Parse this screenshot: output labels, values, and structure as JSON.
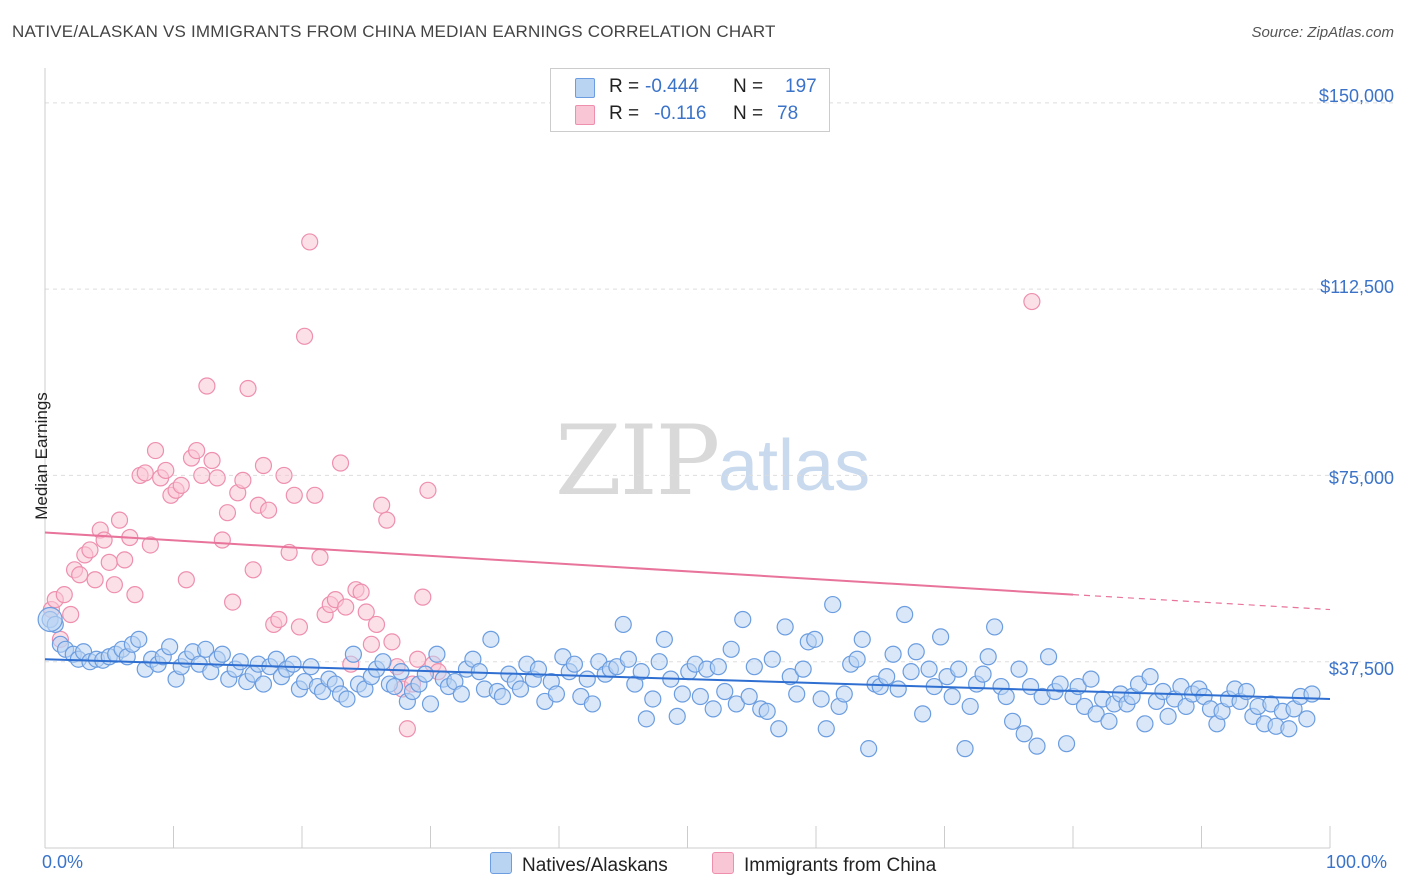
{
  "title": "NATIVE/ALASKAN VS IMMIGRANTS FROM CHINA MEDIAN EARNINGS CORRELATION CHART",
  "source": "Source: ZipAtlas.com",
  "watermark": {
    "zip": "ZIP",
    "atlas": "atlas"
  },
  "legend": {
    "r_label": "R =",
    "n_label": "N =",
    "rows": [
      {
        "r": "-0.444",
        "n": "197"
      },
      {
        "r": "-0.116",
        "n": "78"
      }
    ]
  },
  "colors": {
    "blue_fill": "#b9d3f3",
    "blue_stroke": "#6b9de0",
    "blue_line": "#2f6fd1",
    "pink_fill": "#f9c6d6",
    "pink_stroke": "#ee8fae",
    "pink_line": "#e8739b",
    "grid": "#dddddd",
    "tick_text": "#3b73c9"
  },
  "chart_data": {
    "type": "scatter",
    "title": "NATIVE/ALASKAN VS IMMIGRANTS FROM CHINA MEDIAN EARNINGS CORRELATION CHART",
    "xlabel": "",
    "ylabel": "Median Earnings",
    "xlim": [
      0,
      100
    ],
    "ylim": [
      0,
      155000
    ],
    "x_tick_labels": [
      "0.0%",
      "100.0%"
    ],
    "y_ticks": [
      37500,
      75000,
      112500,
      150000
    ],
    "y_tick_labels": [
      "$37,500",
      "$75,000",
      "$112,500",
      "$150,000"
    ],
    "grid": "horizontal dashed",
    "legend_position": "top-center and bottom",
    "series": [
      {
        "name": "Natives/Alaskans",
        "r": -0.444,
        "n": 197,
        "trend": {
          "x": [
            0,
            100
          ],
          "y": [
            38000,
            30000
          ]
        },
        "points": [
          [
            0.4,
            46000
          ],
          [
            0.8,
            45000
          ],
          [
            1.2,
            41000
          ],
          [
            1.6,
            40000
          ],
          [
            2.2,
            39000
          ],
          [
            2.6,
            38000
          ],
          [
            3.0,
            39500
          ],
          [
            3.5,
            37500
          ],
          [
            4.0,
            38000
          ],
          [
            4.5,
            37800
          ],
          [
            5.0,
            38500
          ],
          [
            5.5,
            39000
          ],
          [
            6.0,
            40000
          ],
          [
            6.4,
            38500
          ],
          [
            6.8,
            41000
          ],
          [
            7.3,
            42000
          ],
          [
            7.8,
            36000
          ],
          [
            8.3,
            38000
          ],
          [
            8.8,
            37000
          ],
          [
            9.2,
            38500
          ],
          [
            9.7,
            40500
          ],
          [
            10.2,
            34000
          ],
          [
            10.6,
            36500
          ],
          [
            11.0,
            38000
          ],
          [
            11.5,
            39500
          ],
          [
            12.0,
            37000
          ],
          [
            12.5,
            40000
          ],
          [
            12.9,
            35500
          ],
          [
            13.4,
            38000
          ],
          [
            13.8,
            39000
          ],
          [
            14.3,
            34000
          ],
          [
            14.8,
            36000
          ],
          [
            15.2,
            37500
          ],
          [
            15.7,
            33500
          ],
          [
            16.2,
            35000
          ],
          [
            16.6,
            37000
          ],
          [
            17.0,
            33000
          ],
          [
            17.5,
            36500
          ],
          [
            18.0,
            38000
          ],
          [
            18.4,
            34500
          ],
          [
            18.8,
            36000
          ],
          [
            19.3,
            37000
          ],
          [
            19.8,
            32000
          ],
          [
            20.2,
            33500
          ],
          [
            20.7,
            36500
          ],
          [
            21.2,
            32500
          ],
          [
            21.6,
            31500
          ],
          [
            22.1,
            34000
          ],
          [
            22.6,
            33000
          ],
          [
            23.0,
            31000
          ],
          [
            23.5,
            30000
          ],
          [
            24.0,
            39000
          ],
          [
            24.4,
            33000
          ],
          [
            24.9,
            32000
          ],
          [
            25.4,
            34500
          ],
          [
            25.8,
            36000
          ],
          [
            26.3,
            37500
          ],
          [
            26.8,
            33000
          ],
          [
            27.2,
            32500
          ],
          [
            27.7,
            35500
          ],
          [
            28.2,
            29500
          ],
          [
            28.6,
            31500
          ],
          [
            29.1,
            33000
          ],
          [
            29.6,
            35000
          ],
          [
            30.0,
            29000
          ],
          [
            30.5,
            39000
          ],
          [
            31.0,
            34000
          ],
          [
            31.4,
            32500
          ],
          [
            31.9,
            33500
          ],
          [
            32.4,
            31000
          ],
          [
            32.8,
            36000
          ],
          [
            33.3,
            38000
          ],
          [
            33.8,
            35500
          ],
          [
            34.2,
            32000
          ],
          [
            34.7,
            42000
          ],
          [
            35.2,
            31500
          ],
          [
            35.6,
            30500
          ],
          [
            36.1,
            35000
          ],
          [
            36.6,
            33500
          ],
          [
            37.0,
            32000
          ],
          [
            37.5,
            37000
          ],
          [
            38.0,
            34000
          ],
          [
            38.4,
            36000
          ],
          [
            38.9,
            29500
          ],
          [
            39.4,
            33500
          ],
          [
            39.8,
            31000
          ],
          [
            40.3,
            38500
          ],
          [
            40.8,
            35500
          ],
          [
            41.2,
            37000
          ],
          [
            41.7,
            30500
          ],
          [
            42.2,
            34000
          ],
          [
            42.6,
            29000
          ],
          [
            43.1,
            37500
          ],
          [
            43.6,
            35000
          ],
          [
            44.0,
            36000
          ],
          [
            44.5,
            36500
          ],
          [
            45.0,
            45000
          ],
          [
            45.4,
            38000
          ],
          [
            45.9,
            33000
          ],
          [
            46.4,
            35500
          ],
          [
            46.8,
            26000
          ],
          [
            47.3,
            30000
          ],
          [
            47.8,
            37500
          ],
          [
            48.2,
            42000
          ],
          [
            48.7,
            34000
          ],
          [
            49.2,
            26500
          ],
          [
            49.6,
            31000
          ],
          [
            50.1,
            35500
          ],
          [
            50.6,
            37000
          ],
          [
            51.0,
            30500
          ],
          [
            51.5,
            36000
          ],
          [
            52.0,
            28000
          ],
          [
            52.4,
            36500
          ],
          [
            52.9,
            31500
          ],
          [
            53.4,
            40000
          ],
          [
            53.8,
            29000
          ],
          [
            54.3,
            46000
          ],
          [
            54.8,
            30500
          ],
          [
            55.2,
            36500
          ],
          [
            55.7,
            28000
          ],
          [
            56.2,
            27500
          ],
          [
            56.6,
            38000
          ],
          [
            57.1,
            24000
          ],
          [
            57.6,
            44500
          ],
          [
            58.0,
            34500
          ],
          [
            58.5,
            31000
          ],
          [
            59.0,
            36000
          ],
          [
            59.4,
            41500
          ],
          [
            59.9,
            42000
          ],
          [
            60.4,
            30000
          ],
          [
            60.8,
            24000
          ],
          [
            61.3,
            49000
          ],
          [
            61.8,
            28500
          ],
          [
            62.2,
            31000
          ],
          [
            62.7,
            37000
          ],
          [
            63.2,
            38000
          ],
          [
            63.6,
            42000
          ],
          [
            64.1,
            20000
          ],
          [
            64.6,
            33000
          ],
          [
            65.0,
            32500
          ],
          [
            65.5,
            34500
          ],
          [
            66.0,
            39000
          ],
          [
            66.4,
            32000
          ],
          [
            66.9,
            47000
          ],
          [
            67.4,
            35500
          ],
          [
            67.8,
            39500
          ],
          [
            68.3,
            27000
          ],
          [
            68.8,
            36000
          ],
          [
            69.2,
            32500
          ],
          [
            69.7,
            42500
          ],
          [
            70.2,
            34500
          ],
          [
            70.6,
            30500
          ],
          [
            71.1,
            36000
          ],
          [
            71.6,
            20000
          ],
          [
            72.0,
            28500
          ],
          [
            72.5,
            33000
          ],
          [
            73.0,
            35000
          ],
          [
            73.4,
            38500
          ],
          [
            73.9,
            44500
          ],
          [
            74.4,
            32500
          ],
          [
            74.8,
            30500
          ],
          [
            75.3,
            25500
          ],
          [
            75.8,
            36000
          ],
          [
            76.2,
            23000
          ],
          [
            76.7,
            32500
          ],
          [
            77.2,
            20500
          ],
          [
            77.6,
            30500
          ],
          [
            78.1,
            38500
          ],
          [
            78.6,
            31500
          ],
          [
            79.0,
            33000
          ],
          [
            79.5,
            21000
          ],
          [
            80.0,
            30500
          ],
          [
            80.4,
            32500
          ],
          [
            80.9,
            28500
          ],
          [
            81.4,
            34000
          ],
          [
            81.8,
            27000
          ],
          [
            82.3,
            30000
          ],
          [
            82.8,
            25500
          ],
          [
            83.2,
            29000
          ],
          [
            83.7,
            31000
          ],
          [
            84.2,
            29000
          ],
          [
            84.6,
            30500
          ],
          [
            85.1,
            33000
          ],
          [
            85.6,
            25000
          ],
          [
            86.0,
            34500
          ],
          [
            86.5,
            29500
          ],
          [
            87.0,
            31500
          ],
          [
            87.4,
            26500
          ],
          [
            87.9,
            30000
          ],
          [
            88.4,
            32500
          ],
          [
            88.8,
            28500
          ],
          [
            89.3,
            31000
          ],
          [
            89.8,
            32000
          ],
          [
            90.2,
            30500
          ],
          [
            90.7,
            28000
          ],
          [
            91.2,
            25000
          ],
          [
            91.6,
            27500
          ],
          [
            92.1,
            30000
          ],
          [
            92.6,
            32000
          ],
          [
            93.0,
            29500
          ],
          [
            93.5,
            31500
          ],
          [
            94.0,
            26500
          ],
          [
            94.4,
            28500
          ],
          [
            94.9,
            25000
          ],
          [
            95.4,
            29000
          ],
          [
            95.8,
            24500
          ],
          [
            96.3,
            27500
          ],
          [
            96.8,
            24000
          ],
          [
            97.2,
            28000
          ],
          [
            97.7,
            30500
          ],
          [
            98.2,
            26000
          ],
          [
            98.6,
            31000
          ]
        ]
      },
      {
        "name": "Immigrants from China",
        "r": -0.116,
        "n": 78,
        "trend": {
          "x": [
            0,
            80
          ],
          "y": [
            63500,
            51000
          ]
        },
        "trend_dashed": {
          "x": [
            80,
            100
          ],
          "y": [
            51000,
            48000
          ]
        },
        "points": [
          [
            0.5,
            48000
          ],
          [
            0.8,
            50000
          ],
          [
            1.2,
            42000
          ],
          [
            1.5,
            51000
          ],
          [
            2.0,
            47000
          ],
          [
            2.3,
            56000
          ],
          [
            2.7,
            55000
          ],
          [
            3.1,
            59000
          ],
          [
            3.5,
            60000
          ],
          [
            3.9,
            54000
          ],
          [
            4.3,
            64000
          ],
          [
            4.6,
            62000
          ],
          [
            5.0,
            57500
          ],
          [
            5.4,
            53000
          ],
          [
            5.8,
            66000
          ],
          [
            6.2,
            58000
          ],
          [
            6.6,
            62500
          ],
          [
            7.0,
            51000
          ],
          [
            7.4,
            75000
          ],
          [
            7.8,
            75500
          ],
          [
            8.2,
            61000
          ],
          [
            8.6,
            80000
          ],
          [
            9.0,
            74500
          ],
          [
            9.4,
            76000
          ],
          [
            9.8,
            71000
          ],
          [
            10.2,
            72000
          ],
          [
            10.6,
            73000
          ],
          [
            11.0,
            54000
          ],
          [
            11.4,
            78500
          ],
          [
            11.8,
            80000
          ],
          [
            12.2,
            75000
          ],
          [
            12.6,
            93000
          ],
          [
            13.0,
            78000
          ],
          [
            13.4,
            74500
          ],
          [
            13.8,
            62000
          ],
          [
            14.2,
            67500
          ],
          [
            14.6,
            49500
          ],
          [
            15.0,
            71500
          ],
          [
            15.4,
            74000
          ],
          [
            15.8,
            92500
          ],
          [
            16.2,
            56000
          ],
          [
            16.6,
            69000
          ],
          [
            17.0,
            77000
          ],
          [
            17.4,
            68000
          ],
          [
            17.8,
            45000
          ],
          [
            18.2,
            46000
          ],
          [
            18.6,
            75000
          ],
          [
            19.0,
            59500
          ],
          [
            19.4,
            71000
          ],
          [
            19.8,
            44500
          ],
          [
            20.2,
            103000
          ],
          [
            20.6,
            122000
          ],
          [
            21.0,
            71000
          ],
          [
            21.4,
            58500
          ],
          [
            21.8,
            47000
          ],
          [
            22.2,
            49000
          ],
          [
            22.6,
            50000
          ],
          [
            23.0,
            77500
          ],
          [
            23.4,
            48500
          ],
          [
            23.8,
            37000
          ],
          [
            24.2,
            52000
          ],
          [
            24.6,
            51500
          ],
          [
            25.0,
            47500
          ],
          [
            25.4,
            41000
          ],
          [
            25.8,
            45000
          ],
          [
            26.2,
            69000
          ],
          [
            26.6,
            66000
          ],
          [
            27.0,
            41500
          ],
          [
            27.4,
            36500
          ],
          [
            27.8,
            32000
          ],
          [
            28.2,
            24000
          ],
          [
            28.6,
            33000
          ],
          [
            29.0,
            38000
          ],
          [
            29.4,
            50500
          ],
          [
            29.8,
            72000
          ],
          [
            30.2,
            37000
          ],
          [
            30.6,
            35500
          ],
          [
            76.8,
            110000
          ]
        ]
      }
    ]
  },
  "bottom_legend": [
    "Natives/Alaskans",
    "Immigrants from China"
  ]
}
